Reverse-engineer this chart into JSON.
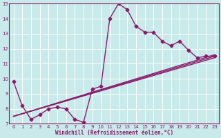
{
  "xlabel": "Windchill (Refroidissement éolien,°C)",
  "xlim": [
    -0.5,
    23.5
  ],
  "ylim": [
    7,
    15
  ],
  "xticks": [
    0,
    1,
    2,
    3,
    4,
    5,
    6,
    7,
    8,
    9,
    10,
    11,
    12,
    13,
    14,
    15,
    16,
    17,
    18,
    19,
    20,
    21,
    22,
    23
  ],
  "yticks": [
    7,
    8,
    9,
    10,
    11,
    12,
    13,
    14,
    15
  ],
  "bg_color": "#c8eaea",
  "line_color": "#8b1a6b",
  "grid_color": "#ffffff",
  "main_line": {
    "x": [
      0,
      1,
      2,
      3,
      4,
      5,
      6,
      7,
      8,
      9,
      10,
      11,
      12,
      13,
      14,
      15,
      16,
      17,
      18,
      19,
      20,
      21,
      22,
      23
    ],
    "y": [
      9.8,
      8.2,
      7.3,
      7.6,
      8.0,
      8.1,
      8.0,
      7.3,
      7.1,
      9.3,
      9.5,
      14.0,
      15.0,
      14.6,
      13.5,
      13.1,
      13.1,
      12.5,
      12.2,
      12.5,
      11.9,
      11.4,
      11.5,
      11.5
    ],
    "marker": "D",
    "markersize": 2.5,
    "linewidth": 1.0
  },
  "trend_lines": [
    {
      "x0": 0,
      "y0": 7.5,
      "x1": 23,
      "y1": 11.5
    },
    {
      "x0": 0,
      "y0": 7.5,
      "x1": 23,
      "y1": 11.5
    },
    {
      "x0": 0,
      "y0": 7.5,
      "x1": 23,
      "y1": 11.5
    }
  ]
}
